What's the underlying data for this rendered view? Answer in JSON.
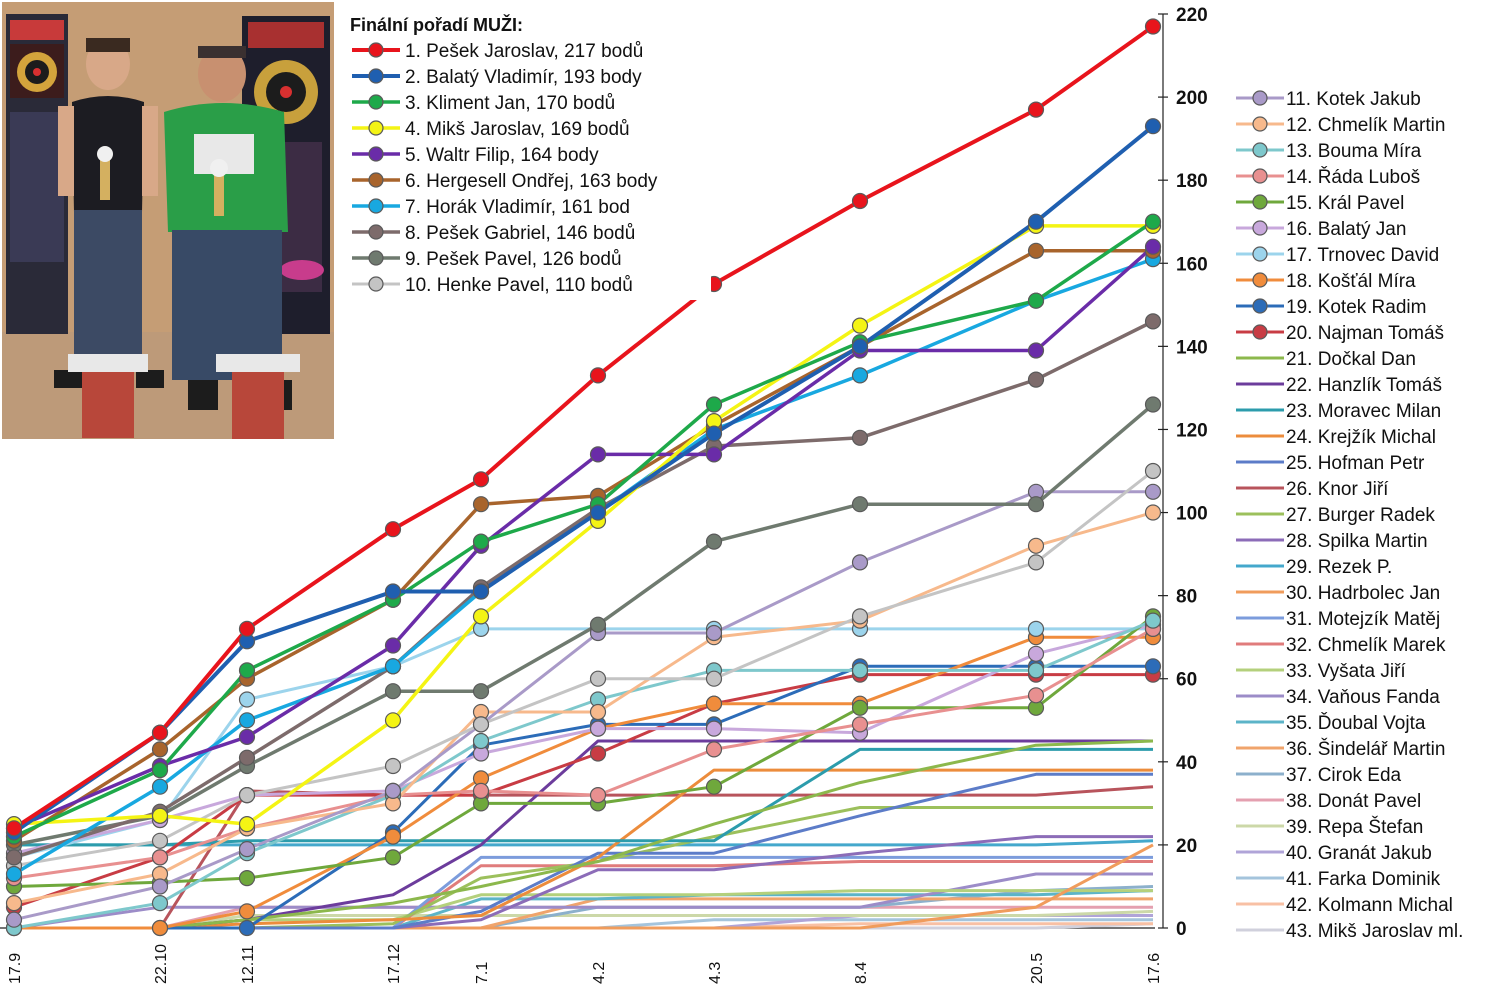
{
  "chart_data": {
    "type": "line",
    "title": "Finální pořadí MUŽI:",
    "categories": [
      "17.9",
      "22.10",
      "12.11",
      "17.12",
      "7.1",
      "4.2",
      "4.3",
      "8.4",
      "20.5",
      "17.6"
    ],
    "ylim": [
      0,
      220
    ],
    "yticks": [
      0,
      20,
      40,
      60,
      80,
      100,
      120,
      140,
      160,
      180,
      200,
      220
    ],
    "y_axis_position": "right",
    "legend_placement": "top-left and right",
    "series": [
      {
        "name": "1.   Pešek Jaroslav, 217 bodů",
        "color": "#e8141c",
        "width": 4,
        "marker": true,
        "values": [
          24,
          47,
          72,
          96,
          108,
          133,
          155,
          175,
          197,
          217
        ]
      },
      {
        "name": "2.   Balatý Vladimír, 193 body",
        "color": "#1f5fb0",
        "width": 4,
        "marker": true,
        "values": [
          23,
          47,
          69,
          81,
          81,
          100,
          119,
          140,
          170,
          193
        ]
      },
      {
        "name": "3.   Kliment Jan, 170 bodů",
        "color": "#1ea94a",
        "width": 3.5,
        "marker": true,
        "values": [
          22,
          38,
          62,
          79,
          93,
          102,
          126,
          141,
          151,
          170
        ]
      },
      {
        "name": "4.   Mikš Jaroslav, 169 bodů",
        "color": "#f4f414",
        "width": 3.5,
        "marker": true,
        "values": [
          25,
          27,
          25,
          50,
          75,
          98,
          122,
          145,
          169,
          169
        ]
      },
      {
        "name": "5.   Waltr Filip, 164 body",
        "color": "#6a2ca8",
        "width": 3.5,
        "marker": true,
        "values": [
          24,
          39,
          46,
          68,
          92,
          114,
          114,
          139,
          139,
          164
        ]
      },
      {
        "name": "6.   Hergesell Ondřej, 163 body",
        "color": "#a8642c",
        "width": 3.5,
        "marker": true,
        "values": [
          21,
          43,
          60,
          79,
          102,
          104,
          121,
          140,
          163,
          163
        ]
      },
      {
        "name": "7.   Horák Vladimír, 161 bod",
        "color": "#18a8e0",
        "width": 3.5,
        "marker": true,
        "values": [
          13,
          34,
          50,
          63,
          81,
          100,
          120,
          133,
          151,
          161
        ]
      },
      {
        "name": "8.   Pešek Gabriel, 146 bodů",
        "color": "#7d6b6b",
        "width": 3.5,
        "marker": true,
        "values": [
          17,
          28,
          41,
          63,
          82,
          101,
          116,
          118,
          132,
          146
        ]
      },
      {
        "name": "9.   Pešek Pavel, 126 bodů",
        "color": "#6f7a6f",
        "width": 3.5,
        "marker": true,
        "values": [
          20,
          27,
          39,
          57,
          57,
          73,
          93,
          102,
          102,
          126
        ]
      },
      {
        "name": "10. Henke Pavel, 110 bodů",
        "color": "#c4c4c4",
        "width": 3,
        "marker": true,
        "values": [
          15,
          21,
          32,
          39,
          49,
          60,
          60,
          75,
          88,
          110
        ]
      },
      {
        "name": "11. Kotek Jakub",
        "color": "#a99ac8",
        "width": 3,
        "marker": true,
        "values": [
          2,
          10,
          19,
          33,
          49,
          71,
          71,
          88,
          105,
          105
        ]
      },
      {
        "name": "12. Chmelík Martin",
        "color": "#f7b98c",
        "width": 3,
        "marker": true,
        "values": [
          6,
          13,
          24,
          30,
          52,
          52,
          70,
          74,
          92,
          100
        ]
      },
      {
        "name": "13. Bouma Míra",
        "color": "#7ec8cc",
        "width": 3,
        "marker": true,
        "values": [
          0,
          6,
          18,
          32,
          45,
          55,
          62,
          62,
          62,
          74
        ]
      },
      {
        "name": "14. Řáda Luboš",
        "color": "#e89090",
        "width": 3,
        "marker": true,
        "values": [
          12,
          17,
          24,
          32,
          33,
          32,
          43,
          49,
          56,
          72
        ]
      },
      {
        "name": "15. Král Pavel",
        "color": "#6fa83c",
        "width": 3,
        "marker": true,
        "values": [
          10,
          11,
          12,
          17,
          30,
          30,
          34,
          53,
          53,
          75
        ]
      },
      {
        "name": "16. Balatý Jan",
        "color": "#c8a8dc",
        "width": 3,
        "marker": true,
        "values": [
          18,
          26,
          32,
          33,
          42,
          48,
          48,
          47,
          66,
          73
        ]
      },
      {
        "name": "17. Trnovec David",
        "color": "#9cd4ec",
        "width": 3,
        "marker": true,
        "values": [
          17,
          26,
          55,
          63,
          72,
          72,
          72,
          72,
          72,
          72
        ]
      },
      {
        "name": "18. Košťál Míra",
        "color": "#f08c3c",
        "width": 3,
        "marker": true,
        "values": [
          0,
          0,
          4,
          22,
          36,
          48,
          54,
          54,
          70,
          70
        ]
      },
      {
        "name": "19. Kotek Radim",
        "color": "#2c6cb8",
        "width": 3,
        "marker": true,
        "values": [
          0,
          0,
          0,
          23,
          44,
          49,
          49,
          63,
          63,
          63
        ]
      },
      {
        "name": "20. Najman Tomáš",
        "color": "#c83c44",
        "width": 3,
        "marker": true,
        "values": [
          5,
          17,
          32,
          32,
          32,
          42,
          54,
          61,
          61,
          61
        ]
      },
      {
        "name": "21. Dočkal Dan",
        "color": "#8cb84c",
        "width": 3,
        "marker": false,
        "values": [
          0,
          0,
          2,
          6,
          10,
          16,
          25,
          35,
          44,
          45
        ]
      },
      {
        "name": "22. Hanzlík Tomáš",
        "color": "#6c3c9c",
        "width": 3,
        "marker": false,
        "values": [
          0,
          0,
          2,
          8,
          20,
          45,
          45,
          45,
          45,
          45
        ]
      },
      {
        "name": "23. Moravec Milan",
        "color": "#2c9cac",
        "width": 3,
        "marker": false,
        "values": [
          20,
          20,
          21,
          21,
          21,
          21,
          21,
          43,
          43,
          43
        ]
      },
      {
        "name": "24. Krejžík Michal",
        "color": "#ec8c3c",
        "width": 3,
        "marker": false,
        "values": [
          0,
          0,
          1,
          2,
          3,
          17,
          38,
          38,
          38,
          38
        ]
      },
      {
        "name": "25. Hofman Petr",
        "color": "#5c7cc8",
        "width": 3,
        "marker": false,
        "values": [
          0,
          0,
          0,
          0,
          4,
          18,
          18,
          27,
          37,
          37
        ]
      },
      {
        "name": "26. Knor Jiří",
        "color": "#b8545c",
        "width": 3,
        "marker": false,
        "values": [
          0,
          0,
          33,
          32,
          32,
          32,
          32,
          32,
          32,
          34
        ]
      },
      {
        "name": "27. Burger Radek",
        "color": "#9cc05c",
        "width": 3,
        "marker": false,
        "values": [
          0,
          0,
          0,
          1,
          12,
          16,
          22,
          29,
          29,
          29
        ]
      },
      {
        "name": "28. Spilka Martin",
        "color": "#8c6cb8",
        "width": 3,
        "marker": false,
        "values": [
          0,
          0,
          0,
          0,
          2,
          14,
          14,
          18,
          22,
          22
        ]
      },
      {
        "name": "29. Rezek P.",
        "color": "#44a8cc",
        "width": 3,
        "marker": false,
        "values": [
          20,
          20,
          20,
          20,
          20,
          20,
          20,
          20,
          20,
          21
        ]
      },
      {
        "name": "30. Hadrbolec Jan",
        "color": "#f09c5c",
        "width": 3,
        "marker": false,
        "values": [
          0,
          0,
          0,
          0,
          0,
          0,
          0,
          0,
          5,
          20
        ]
      },
      {
        "name": "31. Motejzík Matěj",
        "color": "#7c9cdc",
        "width": 3,
        "marker": false,
        "values": [
          0,
          0,
          0,
          0,
          17,
          17,
          17,
          17,
          17,
          17
        ]
      },
      {
        "name": "32. Chmelík Marek",
        "color": "#e07c7c",
        "width": 3,
        "marker": false,
        "values": [
          0,
          0,
          0,
          0,
          15,
          15,
          15,
          16,
          16,
          16
        ]
      },
      {
        "name": "33. Vyšata Jiří",
        "color": "#b4d07c",
        "width": 3,
        "marker": false,
        "values": [
          0,
          0,
          2,
          2,
          8,
          8,
          8,
          9,
          9,
          9
        ]
      },
      {
        "name": "34. Vaňous Fanda",
        "color": "#9c8cc8",
        "width": 3,
        "marker": false,
        "values": [
          0,
          5,
          5,
          5,
          5,
          5,
          5,
          5,
          13,
          13
        ]
      },
      {
        "name": "35. Ďoubal Vojta",
        "color": "#5cb4c8",
        "width": 3,
        "marker": false,
        "values": [
          0,
          0,
          0,
          0,
          7,
          7,
          8,
          8,
          8,
          9
        ]
      },
      {
        "name": "36. Šindelář Martin",
        "color": "#f0a46c",
        "width": 3,
        "marker": false,
        "values": [
          0,
          0,
          0,
          0,
          0,
          7,
          7,
          7,
          7,
          7
        ]
      },
      {
        "name": "37. Cirok Eda",
        "color": "#8cb0cc",
        "width": 3,
        "marker": false,
        "values": [
          0,
          0,
          0,
          0,
          0,
          5,
          5,
          5,
          9,
          10
        ]
      },
      {
        "name": "38. Donát Pavel",
        "color": "#e4a0b0",
        "width": 3,
        "marker": false,
        "values": [
          0,
          0,
          5,
          5,
          5,
          5,
          5,
          5,
          5,
          5
        ]
      },
      {
        "name": "39. Repa Štefan",
        "color": "#ccd8a8",
        "width": 3,
        "marker": false,
        "values": [
          0,
          0,
          3,
          3,
          3,
          3,
          3,
          3,
          3,
          4
        ]
      },
      {
        "name": "40. Granát Jakub",
        "color": "#b0a4d8",
        "width": 3,
        "marker": false,
        "values": [
          0,
          0,
          0,
          0,
          0,
          0,
          0,
          3,
          3,
          3
        ]
      },
      {
        "name": "41. Farka Dominik",
        "color": "#a4c4dc",
        "width": 3,
        "marker": false,
        "values": [
          0,
          0,
          0,
          0,
          0,
          0,
          2,
          2,
          2,
          2
        ]
      },
      {
        "name": "42. Kolmann Michal",
        "color": "#f8c0a4",
        "width": 3,
        "marker": false,
        "values": [
          0,
          0,
          0,
          0,
          0,
          0,
          0,
          1,
          1,
          1
        ]
      },
      {
        "name": "43. Mikš Jaroslav ml.",
        "color": "#d0d0dc",
        "width": 3,
        "marker": false,
        "values": [
          0,
          0,
          0,
          0,
          0,
          0,
          0,
          0,
          0,
          1
        ]
      }
    ]
  }
}
